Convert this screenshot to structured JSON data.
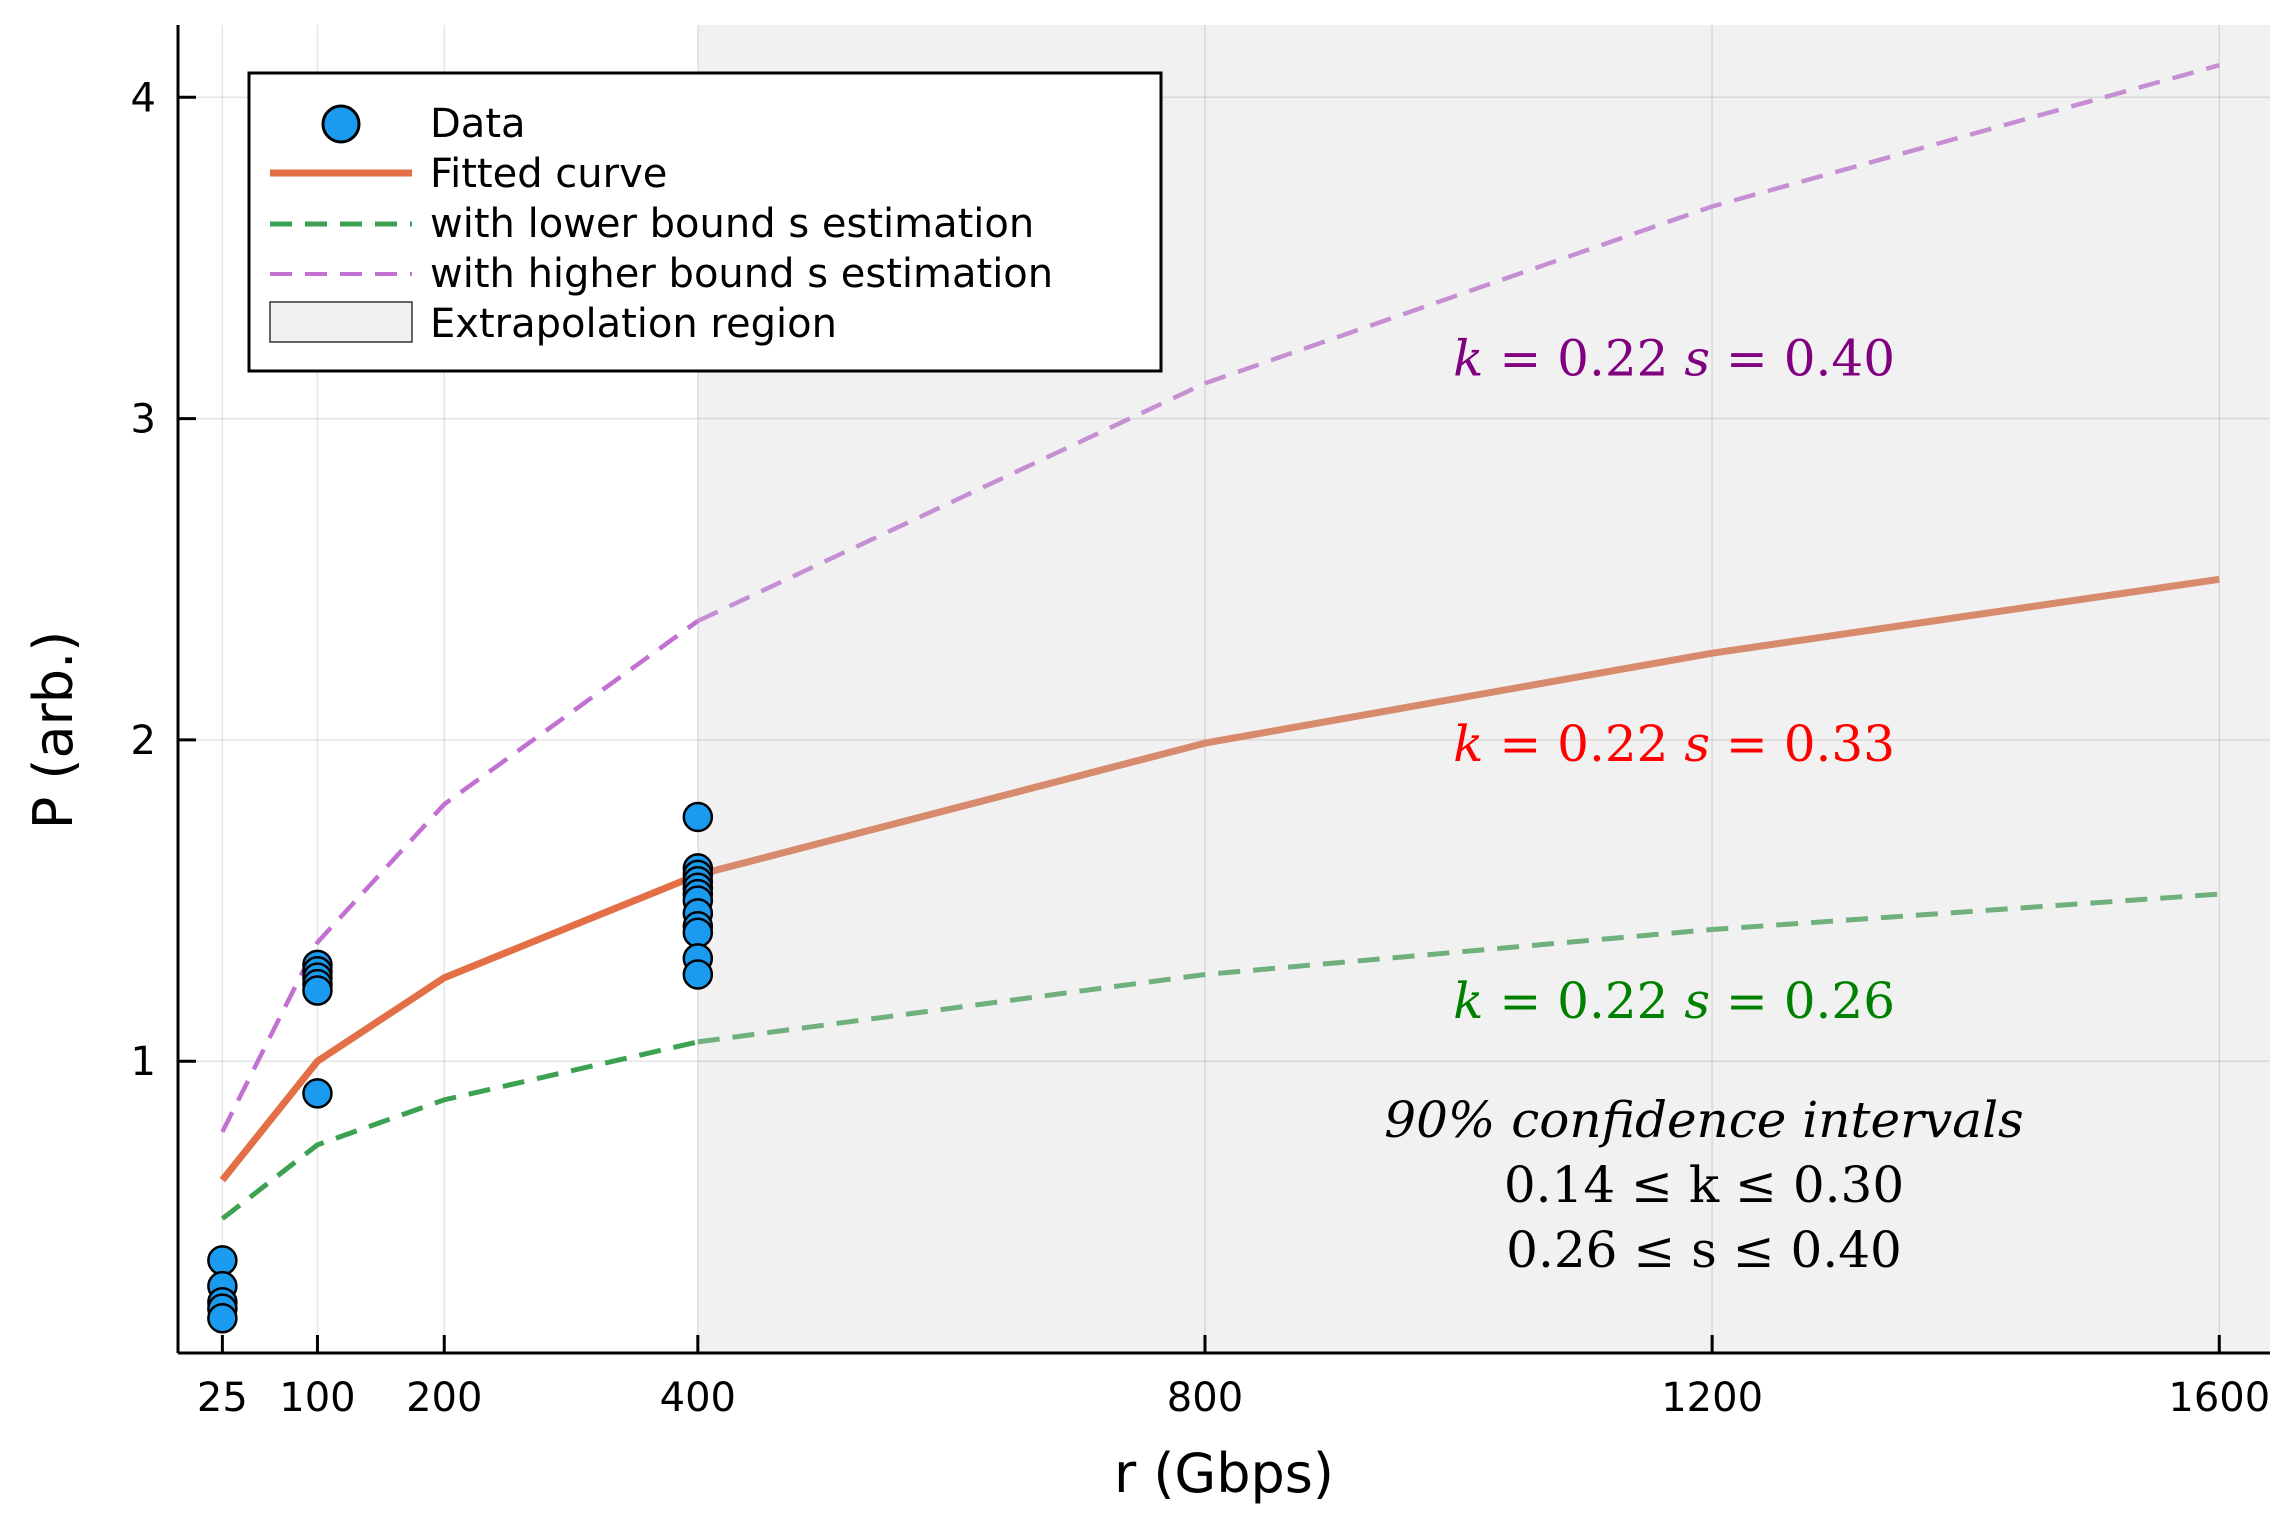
{
  "chart_data": {
    "type": "line",
    "title": "",
    "xlabel": "r (Gbps)",
    "ylabel": "P (arb.)",
    "xlim": [
      -10,
      1640
    ],
    "ylim": [
      0.0919,
      4.225
    ],
    "x_ticks": [
      25,
      100,
      200,
      400,
      800,
      1200,
      1600
    ],
    "x_tick_labels": [
      "25",
      "100",
      "200",
      "400",
      "800",
      "1200",
      "1600"
    ],
    "y_ticks": [
      1,
      2,
      3,
      4
    ],
    "y_tick_labels": [
      "1",
      "2",
      "3",
      "4"
    ],
    "grid": true,
    "legend_position": "top-left",
    "extrapolation_region": {
      "x_start": 400,
      "x_end": 1640,
      "label": "Extrapolation region",
      "color": "#f1f1f1"
    },
    "scatter": {
      "name": "Data",
      "color": "#1b9bf0",
      "points": [
        {
          "x": 25,
          "y": 0.38
        },
        {
          "x": 25,
          "y": 0.3
        },
        {
          "x": 25,
          "y": 0.25
        },
        {
          "x": 25,
          "y": 0.23
        },
        {
          "x": 25,
          "y": 0.2
        },
        {
          "x": 100,
          "y": 1.3
        },
        {
          "x": 100,
          "y": 1.28
        },
        {
          "x": 100,
          "y": 1.26
        },
        {
          "x": 100,
          "y": 1.24
        },
        {
          "x": 100,
          "y": 1.22
        },
        {
          "x": 100,
          "y": 0.9
        },
        {
          "x": 400,
          "y": 1.76
        },
        {
          "x": 400,
          "y": 1.6
        },
        {
          "x": 400,
          "y": 1.58
        },
        {
          "x": 400,
          "y": 1.56
        },
        {
          "x": 400,
          "y": 1.54
        },
        {
          "x": 400,
          "y": 1.52
        },
        {
          "x": 400,
          "y": 1.5
        },
        {
          "x": 400,
          "y": 1.46
        },
        {
          "x": 400,
          "y": 1.42
        },
        {
          "x": 400,
          "y": 1.4
        },
        {
          "x": 400,
          "y": 1.32
        },
        {
          "x": 400,
          "y": 1.27
        }
      ]
    },
    "series": [
      {
        "name": "Fitted curve",
        "color": "#e26f46",
        "extrapolated_color": "#d88a6d",
        "dash": "solid",
        "x": [
          25,
          100,
          200,
          400,
          800,
          1200,
          1600
        ],
        "values": [
          0.63,
          1.0,
          1.26,
          1.58,
          1.99,
          2.27,
          2.5
        ]
      },
      {
        "name": "with lower bound s estimation",
        "color": "#3ca151",
        "extrapolated_color": "#6fb07c",
        "dash": "dashed",
        "x": [
          25,
          100,
          200,
          400,
          800,
          1200,
          1600
        ],
        "values": [
          0.51,
          0.74,
          0.88,
          1.06,
          1.27,
          1.41,
          1.52
        ]
      },
      {
        "name": "with higher bound s estimation",
        "color": "#c271d2",
        "extrapolated_color": "#c68fd3",
        "dash": "dashed",
        "x": [
          25,
          100,
          200,
          400,
          800,
          1200,
          1600
        ],
        "values": [
          0.78,
          1.37,
          1.8,
          2.37,
          3.11,
          3.66,
          4.1
        ]
      }
    ],
    "annotations": [
      {
        "k_text": "k",
        "k_value": "= 0.22",
        "s_text": "s",
        "s_value": "= 0.40",
        "color": "#800080",
        "x": 1170,
        "y": 3.19
      },
      {
        "k_text": "k",
        "k_value": "= 0.22",
        "s_text": "s",
        "s_value": "= 0.33",
        "color": "#ff0000",
        "x": 1170,
        "y": 1.99
      },
      {
        "k_text": "k",
        "k_value": "= 0.22",
        "s_text": "s",
        "s_value": "= 0.26",
        "color": "#008000",
        "x": 1170,
        "y": 1.19
      }
    ],
    "confidence_note": {
      "line1": "90%   confidence   intervals",
      "line2": "0.14 ≤ k ≤ 0.30",
      "line3": "0.26 ≤ s ≤ 0.40"
    }
  }
}
